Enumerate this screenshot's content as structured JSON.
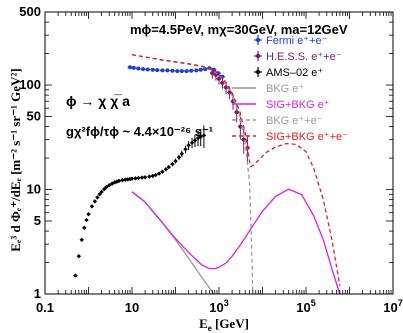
{
  "chart_data": {
    "type": "scatter",
    "xscale": "log",
    "yscale": "log",
    "xlim": [
      0.1,
      10000000
    ],
    "ylim": [
      1,
      500
    ],
    "x_ticks": [
      {
        "value": 0.1,
        "label": "0.1"
      },
      {
        "value": 10,
        "label": "10"
      },
      {
        "value": 1000,
        "label": "10",
        "exp": "3"
      },
      {
        "value": 100000,
        "label": "10",
        "exp": "5"
      },
      {
        "value": 10000000,
        "label": "10",
        "exp": "7"
      }
    ],
    "y_ticks": [
      {
        "value": 1,
        "label": "1"
      },
      {
        "value": 5,
        "label": "5"
      },
      {
        "value": 10,
        "label": "10"
      },
      {
        "value": 50,
        "label": "50"
      },
      {
        "value": 100,
        "label": "100"
      },
      {
        "value": 500,
        "label": "500"
      }
    ],
    "xlabel": "E",
    "xlabel_sub": "e",
    "xlabel_unit": " [GeV]",
    "ylabel": "Eₑ³ d Φₑ⁺/dEₑ [m⁻² s⁻¹ sr⁻¹ GeV²]",
    "annotations": {
      "params": "mϕ=4.5PeV, mχ=30GeV, ma=12GeV",
      "decay": "ϕ → χ χ̅ a",
      "coupling": "gχ²fϕ/τϕ ~ 4.4×10⁻²⁶ s⁻¹"
    },
    "legend_position": "right",
    "legend": [
      {
        "label": "Fermi e⁺+e⁻",
        "color": "#1f3fd8",
        "style": "marker"
      },
      {
        "label": "H.E.S.S. e⁺+e⁻",
        "color": "#7a1a6e",
        "style": "marker"
      },
      {
        "label": "AMS–02 e⁺",
        "color": "#000000",
        "style": "marker"
      },
      {
        "label": "BKG e⁺",
        "color": "#999999",
        "style": "solid"
      },
      {
        "label": "SIG+BKG e⁺",
        "color": "#e020e0",
        "style": "solid"
      },
      {
        "label": "BKG e⁺+e⁻",
        "color": "#999999",
        "style": "dashed"
      },
      {
        "label": "SIG+BKG e⁺+e⁻",
        "color": "#e02020",
        "style": "dashed"
      }
    ],
    "series": [
      {
        "name": "Fermi e⁺+e⁻",
        "kind": "points",
        "color": "#1f3fd8",
        "x": [
          9,
          11,
          14,
          18,
          23,
          30,
          38,
          50,
          65,
          85,
          110,
          140,
          180,
          230,
          300,
          380,
          480,
          600,
          760,
          960,
          1200
        ],
        "y": [
          148,
          146,
          144,
          142,
          141,
          140,
          139,
          138,
          138,
          137,
          136,
          136,
          136,
          137,
          138,
          140,
          142,
          145,
          140,
          130,
          120
        ]
      },
      {
        "name": "H.E.S.S. e⁺+e⁻",
        "kind": "points",
        "color": "#7a1a6e",
        "x": [
          700,
          850,
          1000,
          1200,
          1450,
          1750,
          2100,
          2550,
          3100,
          3700,
          4500
        ],
        "y": [
          130,
          125,
          115,
          105,
          95,
          85,
          70,
          55,
          40,
          30,
          25
        ],
        "yerr": [
          15,
          15,
          14,
          13,
          13,
          12,
          12,
          11,
          10,
          8,
          7
        ]
      },
      {
        "name": "AMS–02 e⁺",
        "kind": "points",
        "color": "#000000",
        "x": [
          0.5,
          0.6,
          0.7,
          0.8,
          0.9,
          1.0,
          1.2,
          1.4,
          1.6,
          1.8,
          2.0,
          2.3,
          2.6,
          3.0,
          3.5,
          4.0,
          4.5,
          5.0,
          6.0,
          7.0,
          8.0,
          9.0,
          10,
          12,
          14,
          17,
          20,
          25,
          30,
          35,
          42,
          50,
          60,
          70,
          85,
          100,
          120,
          140,
          170,
          200,
          240,
          280,
          330,
          380,
          450
        ],
        "y": [
          1.5,
          2.3,
          3.3,
          4.3,
          5.1,
          5.8,
          6.9,
          7.7,
          8.4,
          9.0,
          9.5,
          10.1,
          10.6,
          11.0,
          11.4,
          11.7,
          11.9,
          12.1,
          12.3,
          12.4,
          12.5,
          12.6,
          12.7,
          12.8,
          12.9,
          13.0,
          13.1,
          13.3,
          13.5,
          13.8,
          14.2,
          14.8,
          15.6,
          16.4,
          17.5,
          18.7,
          20.3,
          22.0,
          24.3,
          26.5,
          28.0,
          29.5,
          31.0,
          32.0,
          33.0
        ],
        "yerr": [
          0,
          0,
          0,
          0,
          0,
          0,
          0,
          0,
          0,
          0,
          0,
          0,
          0,
          0,
          0,
          0,
          0,
          0,
          0,
          0,
          0,
          0,
          0,
          0,
          0,
          0,
          0,
          0,
          0,
          0,
          0,
          0,
          0.5,
          0.6,
          0.8,
          1.0,
          1.2,
          1.6,
          2.0,
          2.6,
          3.2,
          4.0,
          5.0,
          6.0,
          8.0
        ]
      },
      {
        "name": "BKG e⁺",
        "kind": "line",
        "style": "solid",
        "color": "#999999",
        "x": [
          10,
          20,
          50,
          100,
          200,
          400,
          700,
          1000
        ],
        "y": [
          9.5,
          7.6,
          4.8,
          3.3,
          2.2,
          1.45,
          1.05,
          0.85
        ]
      },
      {
        "name": "SIG+BKG e⁺",
        "kind": "line",
        "style": "solid",
        "color": "#e020e0",
        "x": [
          10,
          20,
          50,
          100,
          200,
          400,
          600,
          800,
          1000,
          1500,
          2000,
          3000,
          5000,
          10000,
          20000,
          40000,
          80000,
          150000,
          250000,
          400000,
          600000
        ],
        "y": [
          9.5,
          7.6,
          4.8,
          3.4,
          2.5,
          1.9,
          1.75,
          1.75,
          1.8,
          2.0,
          2.3,
          2.9,
          4.0,
          6.2,
          8.6,
          10.1,
          8.9,
          5.6,
          3.3,
          1.7,
          1.0
        ]
      },
      {
        "name": "BKG e⁺+e⁻",
        "kind": "line",
        "style": "dashed",
        "color": "#999999",
        "x": [
          10,
          20,
          50,
          100,
          200,
          400,
          700,
          1000,
          1500,
          2000,
          3000,
          4000,
          5000,
          5500,
          6000
        ],
        "y": [
          195,
          185,
          172,
          165,
          158,
          150,
          138,
          125,
          100,
          80,
          50,
          28,
          12,
          4,
          1
        ]
      },
      {
        "name": "SIG+BKG e⁺+e⁻",
        "kind": "line",
        "style": "dashed",
        "color": "#e02020",
        "x": [
          10,
          20,
          50,
          100,
          200,
          400,
          700,
          1000,
          1500,
          2000,
          3000,
          4000,
          5000,
          5400,
          6000,
          8000,
          12000,
          20000,
          35000,
          60000,
          100000,
          150000,
          250000,
          400000,
          600000
        ],
        "y": [
          195,
          186,
          174,
          167,
          160,
          152,
          140,
          128,
          104,
          84,
          56,
          35,
          19,
          16.5,
          17,
          19,
          22.5,
          25.5,
          27.5,
          27,
          23,
          16,
          8,
          3.2,
          1.2
        ]
      }
    ]
  }
}
